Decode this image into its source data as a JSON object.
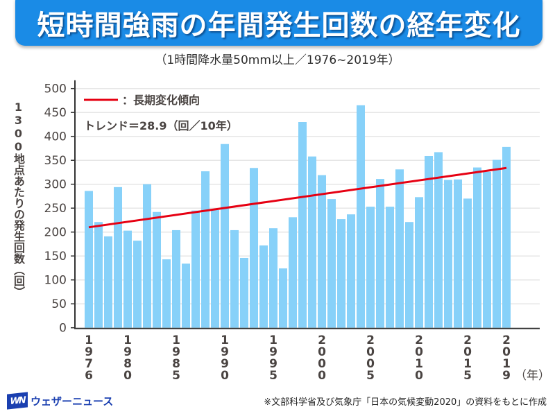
{
  "header": {
    "title": "短時間強雨の年間発生回数の経年変化",
    "subtitle": "（1時間降水量50mm以上／1976~2019年）"
  },
  "colors": {
    "banner": "#1a8be6",
    "bar": "#87d1f9",
    "trend": "#e60012",
    "axis": "#333333",
    "grid": "#e6e6e6",
    "logo": "#1a3fb0"
  },
  "chart_data": {
    "type": "bar",
    "title": "短時間強雨の年間発生回数の経年変化",
    "subtitle": "（1時間降水量50mm以上／1976~2019年）",
    "xlabel": "（年）",
    "ylabel": "1300地点あたりの発生回数（回）",
    "ylim": [
      0,
      500
    ],
    "yticks": [
      0,
      50,
      100,
      150,
      200,
      250,
      300,
      350,
      400,
      450,
      500
    ],
    "grid": true,
    "xtick_labels": [
      "1976",
      "1980",
      "1985",
      "1990",
      "1995",
      "2000",
      "2005",
      "2010",
      "2015",
      "2019"
    ],
    "categories": [
      1976,
      1977,
      1978,
      1979,
      1980,
      1981,
      1982,
      1983,
      1984,
      1985,
      1986,
      1987,
      1988,
      1989,
      1990,
      1991,
      1992,
      1993,
      1994,
      1995,
      1996,
      1997,
      1998,
      1999,
      2000,
      2001,
      2002,
      2003,
      2004,
      2005,
      2006,
      2007,
      2008,
      2009,
      2010,
      2011,
      2012,
      2013,
      2014,
      2015,
      2016,
      2017,
      2018,
      2019
    ],
    "values": [
      286,
      221,
      191,
      294,
      203,
      182,
      300,
      242,
      143,
      204,
      134,
      245,
      327,
      246,
      384,
      204,
      146,
      334,
      172,
      208,
      124,
      231,
      430,
      358,
      319,
      269,
      227,
      237,
      465,
      253,
      311,
      253,
      331,
      221,
      273,
      359,
      367,
      309,
      310,
      270,
      335,
      326,
      351,
      378
    ],
    "trend": {
      "label": "：長期変化傾向",
      "rate_text": "トレンド＝28.9（回／10年）",
      "rate_per_decade": 28.9,
      "start": {
        "x": 1976,
        "y": 210
      },
      "end": {
        "x": 2019,
        "y": 334
      }
    },
    "legend": "top-left"
  },
  "footer": {
    "logo_mark": "WN",
    "logo_text": "ウェザーニュース",
    "source": "※文部科学省及び気象庁「日本の気候変動2020」の資料をもとに作成"
  }
}
